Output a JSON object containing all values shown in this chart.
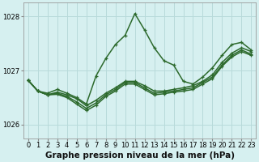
{
  "bg_color": "#d6f0f0",
  "grid_color": "#b8dada",
  "line_color": "#2d6a2d",
  "xlabel": "Graphe pression niveau de la mer (hPa)",
  "xlabel_fontsize": 7.5,
  "tick_fontsize": 6,
  "ylim": [
    1025.75,
    1028.25
  ],
  "yticks": [
    1026,
    1027,
    1028
  ],
  "xlim": [
    -0.5,
    23.5
  ],
  "xticks": [
    0,
    1,
    2,
    3,
    4,
    5,
    6,
    7,
    8,
    9,
    10,
    11,
    12,
    13,
    14,
    15,
    16,
    17,
    18,
    19,
    20,
    21,
    22,
    23
  ],
  "series": [
    [
      1026.82,
      1026.62,
      1026.55,
      1026.6,
      1026.55,
      1026.5,
      1026.38,
      1026.75,
      1027.1,
      1027.42,
      1027.68,
      1028.05,
      1027.72,
      1027.42,
      1027.28,
      1027.18,
      1026.82,
      1026.75,
      1026.85,
      1027.05,
      1027.28,
      1027.42,
      1027.5,
      1027.38
    ],
    [
      1026.82,
      1026.62,
      1026.55,
      1026.6,
      1026.52,
      1026.42,
      1026.32,
      1026.48,
      1026.65,
      1026.78,
      1026.92,
      1026.92,
      1026.8,
      1026.65,
      1026.65,
      1026.7,
      1026.68,
      1026.72,
      1026.8,
      1026.9,
      1027.12,
      1027.28,
      1027.38,
      1027.3
    ],
    [
      1026.82,
      1026.62,
      1026.55,
      1026.58,
      1026.52,
      1026.4,
      1026.3,
      1026.42,
      1026.6,
      1026.72,
      1026.85,
      1026.85,
      1026.75,
      1026.62,
      1026.62,
      1026.65,
      1026.65,
      1026.68,
      1026.78,
      1026.88,
      1027.08,
      1027.25,
      1027.35,
      1027.28
    ],
    [
      1026.82,
      1026.62,
      1026.55,
      1026.58,
      1026.5,
      1026.38,
      1026.28,
      1026.4,
      1026.58,
      1026.7,
      1026.82,
      1026.82,
      1026.72,
      1026.6,
      1026.6,
      1026.62,
      1026.62,
      1026.65,
      1026.75,
      1026.85,
      1027.05,
      1027.22,
      1027.32,
      1027.25
    ]
  ],
  "figsize": [
    3.2,
    2.0
  ],
  "dpi": 100
}
